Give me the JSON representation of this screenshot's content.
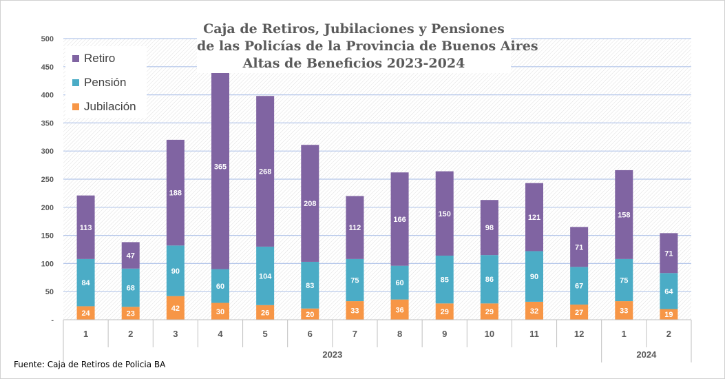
{
  "title_lines": [
    "Caja de Retiros, Jubilaciones y Pensiones",
    "de las Policías de la Provincia de Buenos Aires",
    "Altas de Beneficios 2023-2024"
  ],
  "source": "Fuente: Caja de Retiros de Policia BA",
  "colors": {
    "retiro": "#8064a2",
    "pension": "#4bacc6",
    "jubilacion": "#f79646",
    "gridline": "#c5d3ee",
    "axis_text": "#595959"
  },
  "chart_data": {
    "type": "bar",
    "stacked": true,
    "title": "Caja de Retiros, Jubilaciones y Pensiones de las Policías de la Provincia de Buenos Aires Altas de Beneficios 2023-2024",
    "categories": [
      "1",
      "2",
      "3",
      "4",
      "5",
      "6",
      "7",
      "8",
      "9",
      "10",
      "11",
      "12",
      "1",
      "2"
    ],
    "year_groups": [
      {
        "label": "2023",
        "count": 12
      },
      {
        "label": "2024",
        "count": 2
      }
    ],
    "series": [
      {
        "name": "Jubilación",
        "color": "#f79646",
        "values": [
          24,
          23,
          42,
          30,
          26,
          20,
          33,
          36,
          29,
          29,
          32,
          27,
          33,
          19
        ]
      },
      {
        "name": "Pensión",
        "color": "#4bacc6",
        "values": [
          84,
          68,
          90,
          60,
          104,
          83,
          75,
          60,
          85,
          86,
          90,
          67,
          75,
          64
        ]
      },
      {
        "name": "Retiro",
        "color": "#8064a2",
        "values": [
          113,
          47,
          188,
          365,
          268,
          208,
          112,
          166,
          150,
          98,
          121,
          71,
          158,
          71
        ]
      }
    ],
    "legend_order": [
      "Retiro",
      "Pensión",
      "Jubilación"
    ],
    "legend_position": "top-left",
    "yticks": [
      "-",
      "50",
      "100",
      "150",
      "200",
      "250",
      "300",
      "350",
      "400",
      "450",
      "500"
    ],
    "ylim": [
      0,
      500
    ],
    "grid": true,
    "xlabel": "",
    "ylabel": ""
  }
}
